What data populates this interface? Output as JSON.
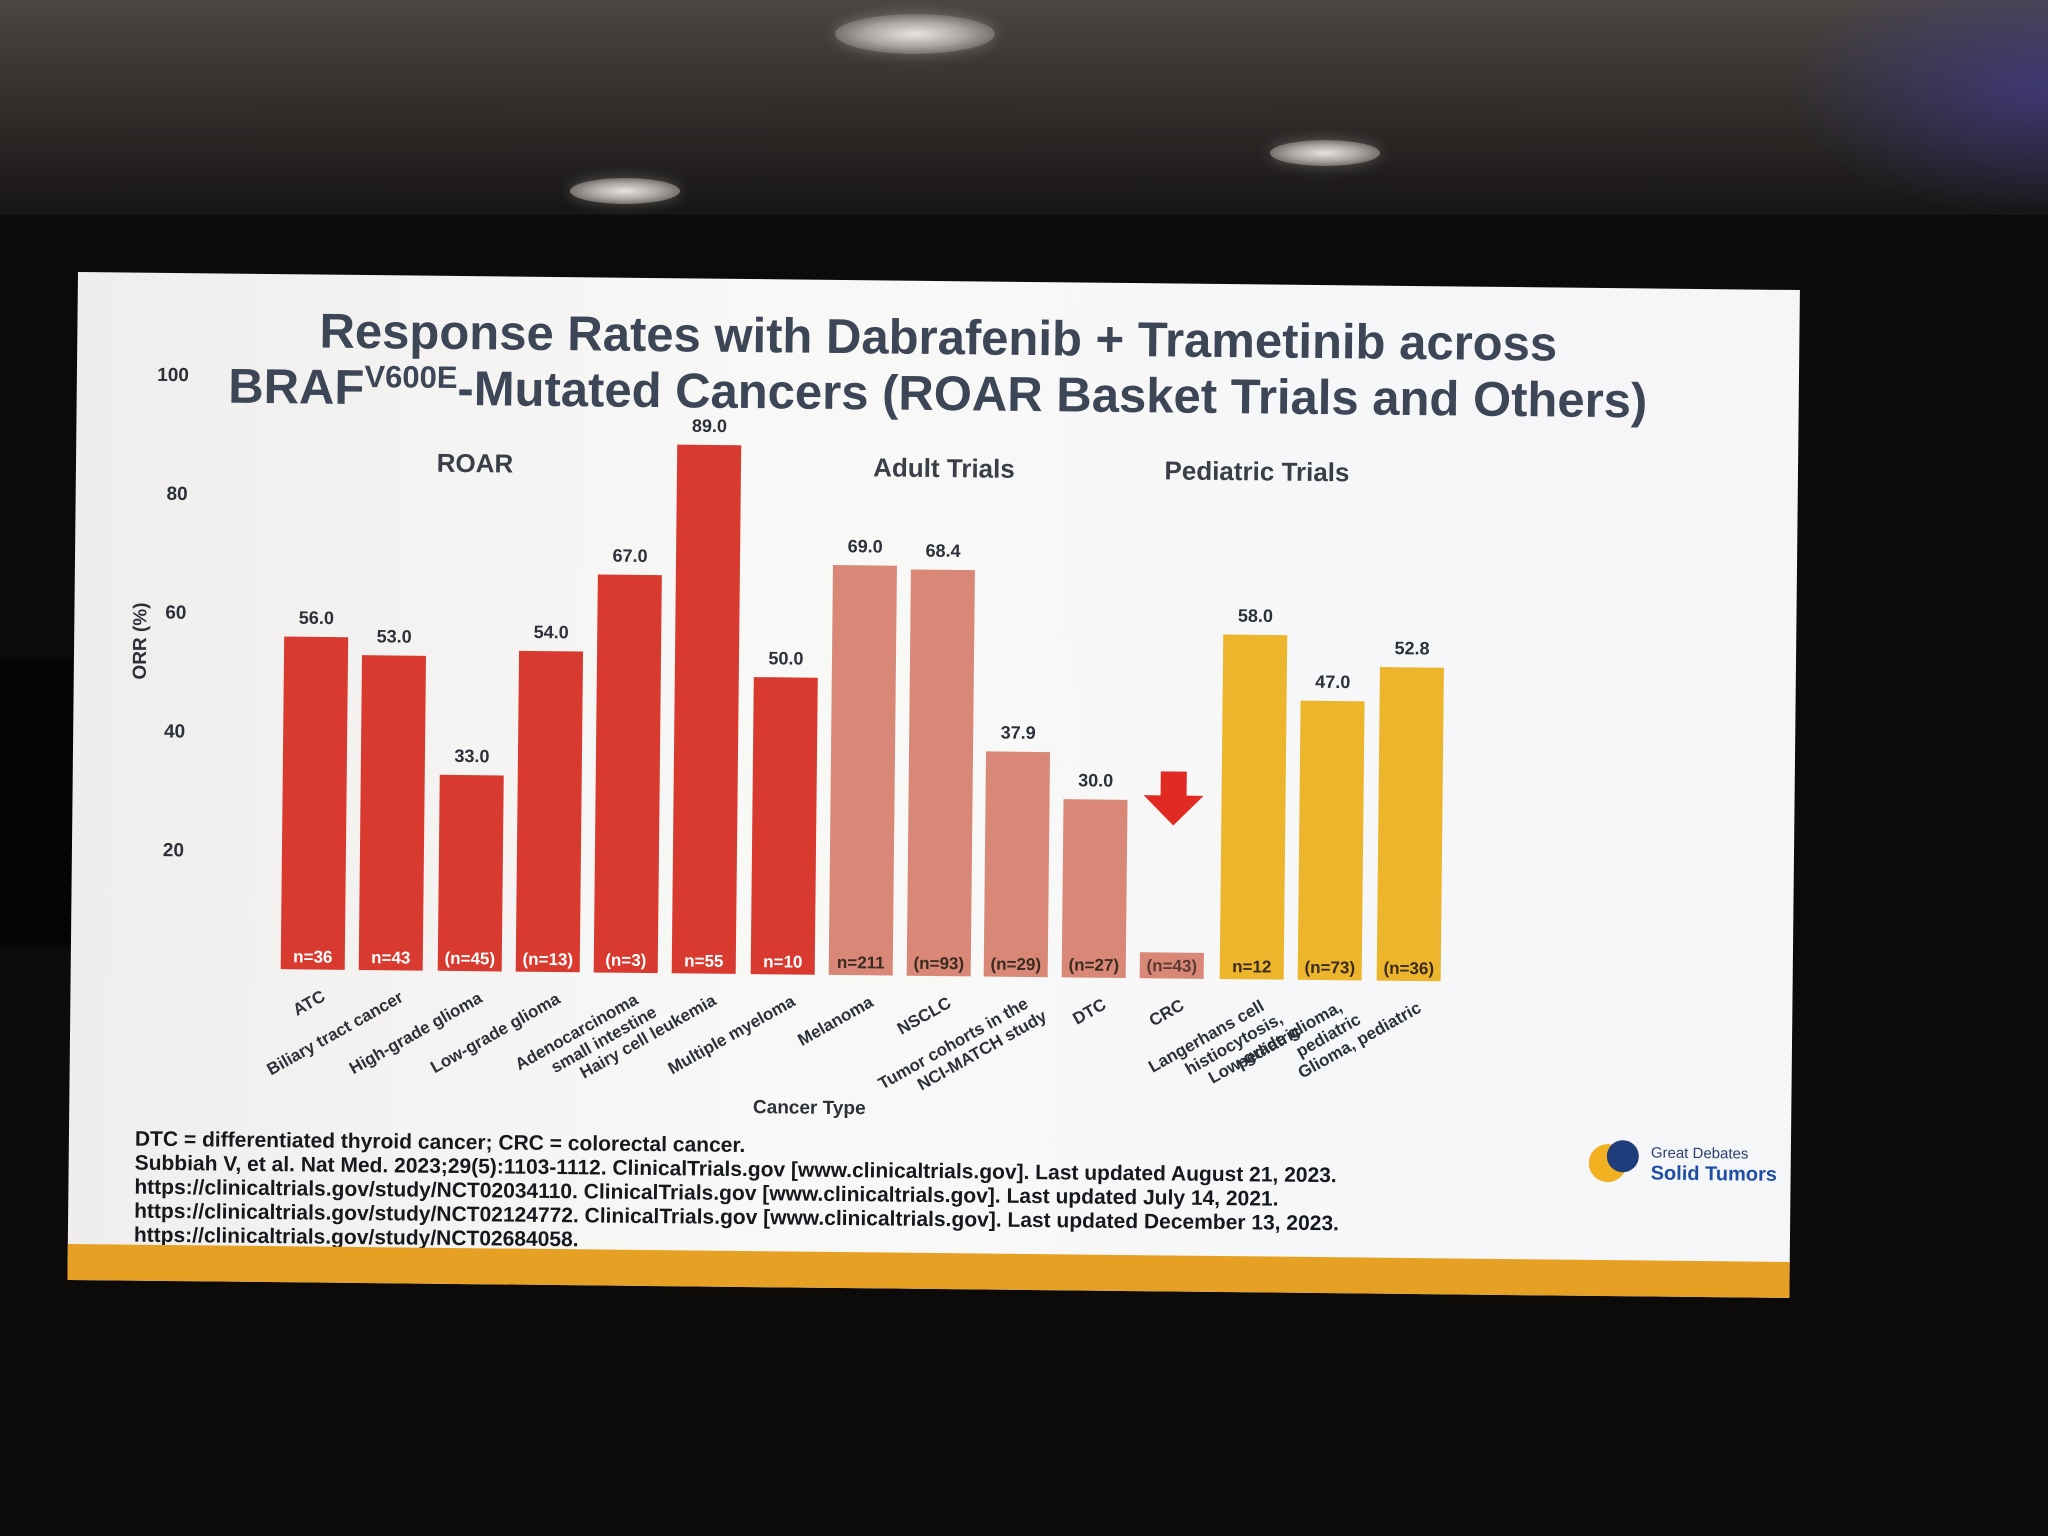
{
  "slide": {
    "title_line1": "Response Rates with Dabrafenib + Trametinib across",
    "title_line2_prefix": "BRAF",
    "title_line2_superscript": "V600E",
    "title_line2_suffix": "-Mutated Cancers (ROAR Basket Trials and Others)"
  },
  "chart_data": {
    "type": "bar",
    "title": "",
    "xlabel": "Cancer Type",
    "ylabel": "ORR (%)",
    "ylim": [
      0,
      100
    ],
    "yticks": [
      20,
      40,
      60,
      80,
      100
    ],
    "grid": false,
    "groups": [
      {
        "name": "ROAR",
        "color": "#d93a2f"
      },
      {
        "name": "Adult Trials",
        "color": "#d98878"
      },
      {
        "name": "Pediatric Trials",
        "color": "#ecb52c"
      }
    ],
    "categories": [
      "ATC",
      "Biliary tract cancer",
      "High-grade glioma",
      "Low-grade glioma",
      "Adenocarcinoma small intestine",
      "Hairy cell leukemia",
      "Multiple myeloma",
      "Melanoma",
      "NSCLC",
      "Tumor cohorts in the NCI-MATCH study",
      "DTC",
      "CRC",
      "Langerhans cell histiocytosis, pediatric",
      "Low-grade glioma, pediatric",
      "Glioma, pediatric"
    ],
    "category_lines": [
      [
        "ATC"
      ],
      [
        "Biliary tract cancer"
      ],
      [
        "High-grade glioma"
      ],
      [
        "Low-grade glioma"
      ],
      [
        "Adenocarcinoma",
        "small intestine"
      ],
      [
        "Hairy cell leukemia"
      ],
      [
        "Multiple myeloma"
      ],
      [
        "Melanoma"
      ],
      [
        "NSCLC"
      ],
      [
        "Tumor cohorts in the",
        "NCI-MATCH study"
      ],
      [
        "DTC"
      ],
      [
        "CRC"
      ],
      [
        "Langerhans cell",
        "histiocytosis,",
        "pediatric"
      ],
      [
        "Low-grade glioma,",
        "pediatric"
      ],
      [
        "Glioma, pediatric"
      ]
    ],
    "group_index": [
      0,
      0,
      0,
      0,
      0,
      0,
      0,
      1,
      1,
      1,
      1,
      1,
      2,
      2,
      2
    ],
    "values": [
      56.0,
      53.0,
      33.0,
      54.0,
      67.0,
      89.0,
      50.0,
      69.0,
      68.4,
      37.9,
      30.0,
      null,
      58.0,
      47.0,
      52.8
    ],
    "value_labels": [
      "56.0",
      "53.0",
      "33.0",
      "54.0",
      "67.0",
      "89.0",
      "50.0",
      "69.0",
      "68.4",
      "37.9",
      "30.0",
      "",
      "58.0",
      "47.0",
      "52.8"
    ],
    "sample_sizes": [
      "n=36",
      "n=43",
      "(n=45)",
      "(n=13)",
      "(n=3)",
      "n=55",
      "n=10",
      "n=211",
      "(n=93)",
      "(n=29)",
      "(n=27)",
      "(n=43)",
      "n=12",
      "(n=73)",
      "(n=36)"
    ],
    "annotations": [
      {
        "type": "down-arrow",
        "category": "CRC",
        "color": "#e02a22"
      }
    ]
  },
  "footnotes": [
    "DTC = differentiated thyroid cancer; CRC = colorectal cancer.",
    "Subbiah V, et al. Nat Med. 2023;29(5):1103-1112. ClinicalTrials.gov [www.clinicaltrials.gov]. Last updated August 21, 2023.",
    "https://clinicaltrials.gov/study/NCT02034110. ClinicalTrials.gov [www.clinicaltrials.gov]. Last updated July 14, 2021.",
    "https://clinicaltrials.gov/study/NCT02124772. ClinicalTrials.gov [www.clinicaltrials.gov]. Last updated December 13, 2023.",
    "https://clinicaltrials.gov/study/NCT02684058."
  ],
  "logo": {
    "line1": "Great Debates",
    "line2": "Solid Tumors"
  }
}
